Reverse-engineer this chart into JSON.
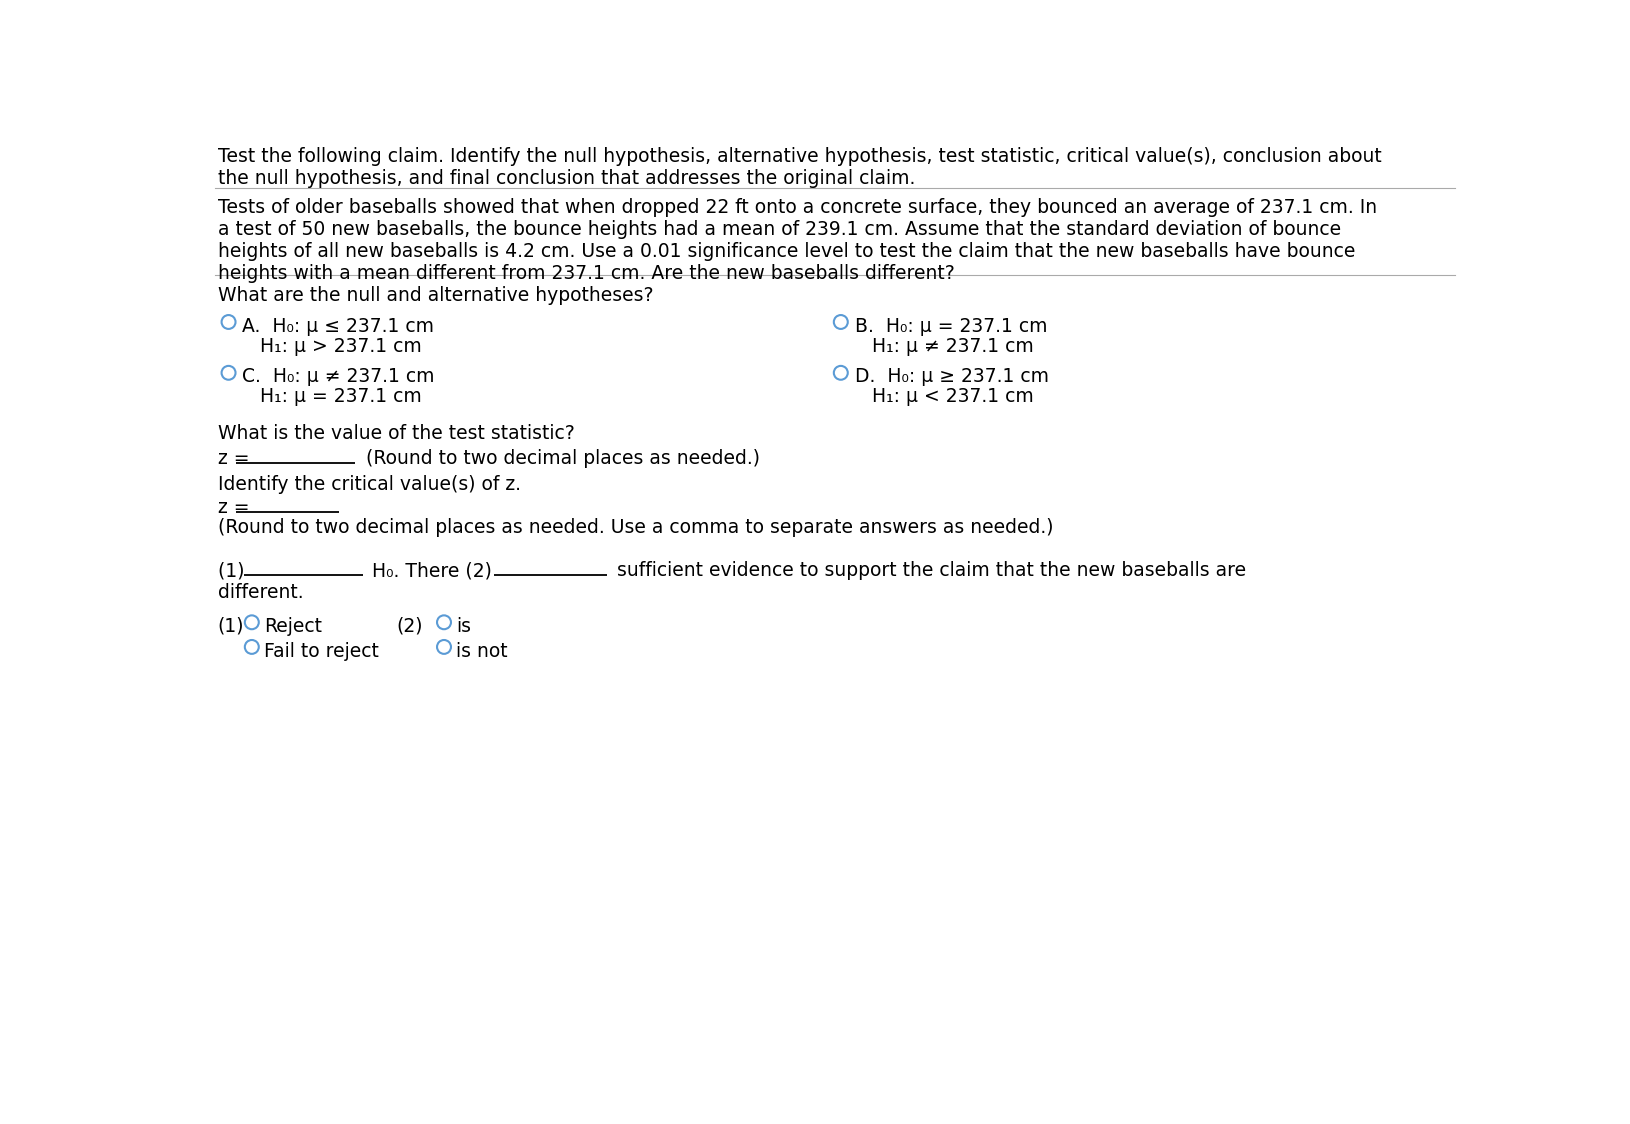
{
  "bg_color": "#ffffff",
  "text_color": "#000000",
  "title_para1": "Test the following claim. Identify the null hypothesis, alternative hypothesis, test statistic, critical value(s), conclusion about\nthe null hypothesis, and final conclusion that addresses the original claim.",
  "title_para2": "Tests of older baseballs showed that when dropped 22 ft onto a concrete surface, they bounced an average of 237.1 cm. In\na test of 50 new baseballs, the bounce heights had a mean of 239.1 cm. Assume that the standard deviation of bounce\nheights of all new baseballs is 4.2 cm. Use a 0.01 significance level to test the claim that the new baseballs have bounce\nheights with a mean different from 237.1 cm. Are the new baseballs different?",
  "question1": "What are the null and alternative hypotheses?",
  "optA_line1": "A.  H₀: μ ≤ 237.1 cm",
  "optA_line2": "H₁: μ > 237.1 cm",
  "optB_line1": "B.  H₀: μ = 237.1 cm",
  "optB_line2": "H₁: μ ≠ 237.1 cm",
  "optC_line1": "C.  H₀: μ ≠ 237.1 cm",
  "optC_line2": "H₁: μ = 237.1 cm",
  "optD_line1": "D.  H₀: μ ≥ 237.1 cm",
  "optD_line2": "H₁: μ < 237.1 cm",
  "question2": "What is the value of the test statistic?",
  "z_label": "z = ",
  "z_round_note": "(Round to two decimal places as needed.)",
  "question3": "Identify the critical value(s) of z.",
  "z_label2": "z = ",
  "z_round_note2": "(Round to two decimal places as needed. Use a comma to separate answers as needed.)",
  "dropdown1_label": "(1)",
  "dropdown1_opt1": "Reject",
  "dropdown1_opt2": "Fail to reject",
  "dropdown2_label": "(2)",
  "dropdown2_opt1": "is",
  "dropdown2_opt2": "is not",
  "font_size_body": 13.5,
  "font_size_options": 13.5,
  "circle_color": "#5b9bd5",
  "line_color": "#000000",
  "sep_color": "#aaaaaa",
  "underline_color": "#000000"
}
